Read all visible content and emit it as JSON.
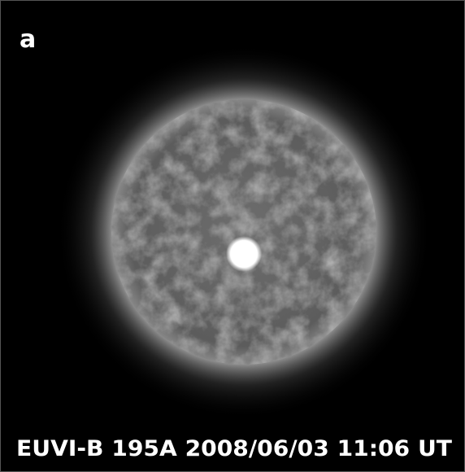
{
  "panel_label": "a",
  "caption": "EUVI-B 195A 2008/06/03 11:06 UT"
}
